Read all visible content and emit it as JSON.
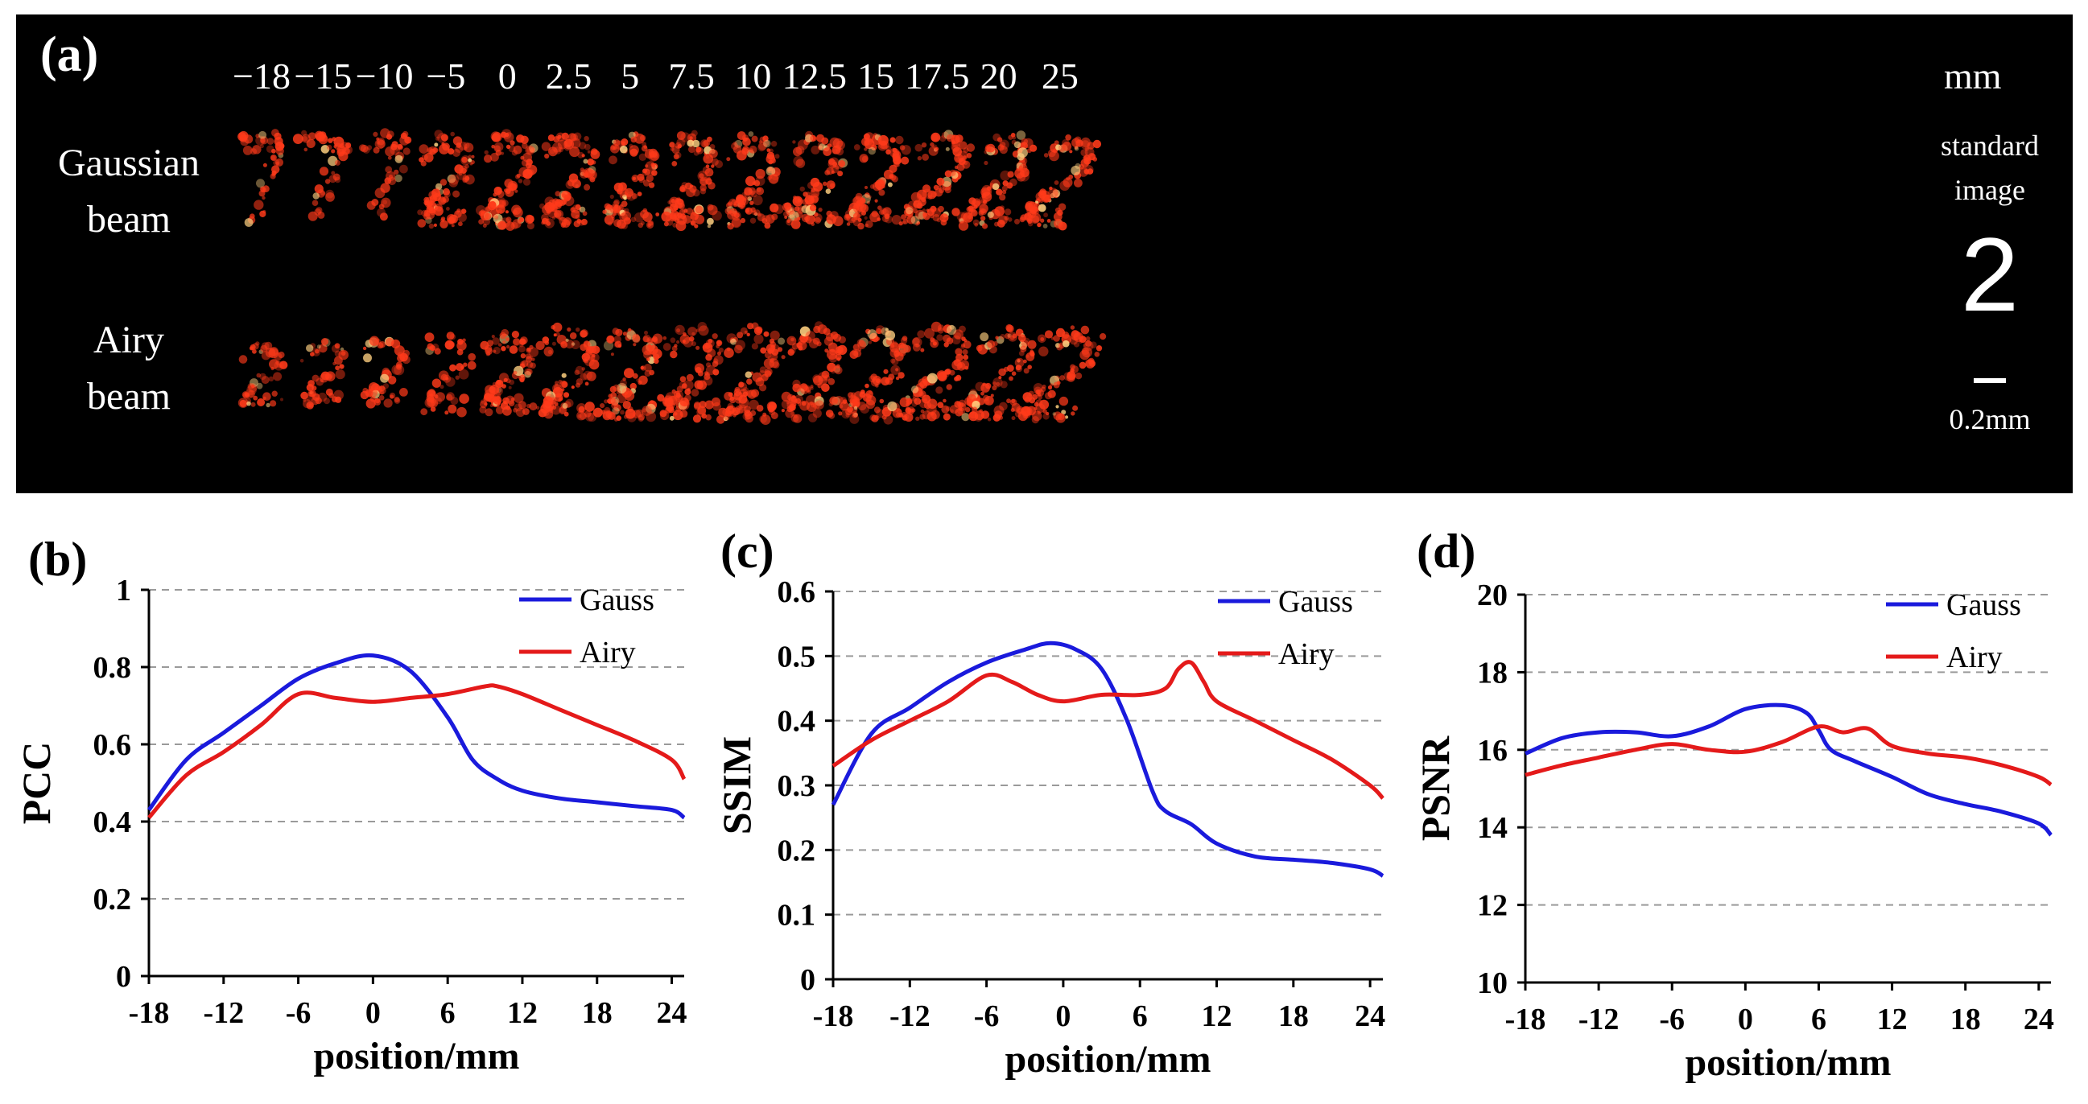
{
  "panel_a": {
    "label": "(a)",
    "positions": [
      "−18",
      "−15",
      "−10",
      "−5",
      "0",
      "2.5",
      "5",
      "7.5",
      "10",
      "12.5",
      "15",
      "17.5",
      "20",
      "25"
    ],
    "unit": "mm",
    "row1_label_line1": "Gaussian",
    "row1_label_line2": "beam",
    "row2_label_line1": "Airy",
    "row2_label_line2": "beam",
    "standard_line1": "standard",
    "standard_line2": "image",
    "standard_digit": "2",
    "scale_label": "0.2mm",
    "colors": {
      "background": "#000000",
      "speckle": "#ff3a1a",
      "speckle_bright": "#ffd080"
    }
  },
  "chart_data": [
    {
      "type": "line",
      "panel_label": "(b)",
      "title": "",
      "xlabel": "position/mm",
      "ylabel": "PCC",
      "xlim": [
        -18,
        25
      ],
      "ylim": [
        0,
        1
      ],
      "xticks": [
        -18,
        -12,
        -6,
        0,
        6,
        12,
        18,
        24
      ],
      "yticks": [
        0,
        0.2,
        0.4,
        0.6,
        0.8,
        1
      ],
      "ytick_labels": [
        "0",
        "0.2",
        "0.4",
        "0.6",
        "0.8",
        "1"
      ],
      "grid": "horizontal-dashed",
      "legend": "top-right",
      "series": [
        {
          "name": "Gauss",
          "color": "#1a1adc",
          "x": [
            -18,
            -15,
            -12,
            -9,
            -6,
            -3,
            0,
            3,
            6,
            8,
            10,
            12,
            15,
            18,
            21,
            24,
            25
          ],
          "y": [
            0.43,
            0.56,
            0.63,
            0.7,
            0.77,
            0.81,
            0.83,
            0.79,
            0.67,
            0.56,
            0.51,
            0.48,
            0.46,
            0.45,
            0.44,
            0.43,
            0.41
          ]
        },
        {
          "name": "Airy",
          "color": "#e41a1a",
          "x": [
            -18,
            -15,
            -12,
            -9,
            -6,
            -3,
            0,
            3,
            6,
            9,
            10,
            12,
            15,
            18,
            21,
            24,
            25
          ],
          "y": [
            0.41,
            0.52,
            0.58,
            0.65,
            0.73,
            0.72,
            0.71,
            0.72,
            0.73,
            0.75,
            0.75,
            0.73,
            0.69,
            0.65,
            0.61,
            0.56,
            0.51
          ]
        }
      ]
    },
    {
      "type": "line",
      "panel_label": "(c)",
      "title": "",
      "xlabel": "position/mm",
      "ylabel": "SSIM",
      "xlim": [
        -18,
        25
      ],
      "ylim": [
        0,
        0.6
      ],
      "xticks": [
        -18,
        -12,
        -6,
        0,
        6,
        12,
        18,
        24
      ],
      "yticks": [
        0,
        0.1,
        0.2,
        0.3,
        0.4,
        0.5,
        0.6
      ],
      "ytick_labels": [
        "0",
        "0.1",
        "0.2",
        "0.3",
        "0.4",
        "0.5",
        "0.6"
      ],
      "grid": "horizontal-dashed",
      "legend": "top-right",
      "series": [
        {
          "name": "Gauss",
          "color": "#1a1adc",
          "x": [
            -18,
            -15,
            -12,
            -9,
            -6,
            -3,
            -1,
            1,
            3,
            5,
            7,
            8,
            10,
            12,
            15,
            18,
            21,
            24,
            25
          ],
          "y": [
            0.27,
            0.38,
            0.42,
            0.46,
            0.49,
            0.51,
            0.52,
            0.51,
            0.48,
            0.4,
            0.29,
            0.26,
            0.24,
            0.21,
            0.19,
            0.185,
            0.18,
            0.17,
            0.16
          ]
        },
        {
          "name": "Airy",
          "color": "#e41a1a",
          "x": [
            -18,
            -15,
            -12,
            -9,
            -6,
            -4,
            -2,
            0,
            3,
            6,
            8,
            9,
            10,
            11,
            12,
            15,
            18,
            21,
            24,
            25
          ],
          "y": [
            0.33,
            0.37,
            0.4,
            0.43,
            0.47,
            0.46,
            0.44,
            0.43,
            0.44,
            0.44,
            0.45,
            0.48,
            0.49,
            0.46,
            0.43,
            0.4,
            0.37,
            0.34,
            0.3,
            0.28
          ]
        }
      ]
    },
    {
      "type": "line",
      "panel_label": "(d)",
      "title": "",
      "xlabel": "position/mm",
      "ylabel": "PSNR",
      "xlim": [
        -18,
        25
      ],
      "ylim": [
        10,
        20
      ],
      "xticks": [
        -18,
        -12,
        -6,
        0,
        6,
        12,
        18,
        24
      ],
      "yticks": [
        10,
        12,
        14,
        16,
        18,
        20
      ],
      "ytick_labels": [
        "10",
        "12",
        "14",
        "16",
        "18",
        "20"
      ],
      "grid": "horizontal-dashed",
      "legend": "top-right",
      "series": [
        {
          "name": "Gauss",
          "color": "#1a1adc",
          "x": [
            -18,
            -15,
            -12,
            -9,
            -6,
            -3,
            0,
            3,
            5,
            6,
            7,
            9,
            12,
            15,
            18,
            21,
            24,
            25
          ],
          "y": [
            15.9,
            16.3,
            16.45,
            16.45,
            16.35,
            16.6,
            17.05,
            17.15,
            16.95,
            16.5,
            16.0,
            15.7,
            15.3,
            14.85,
            14.6,
            14.4,
            14.1,
            13.8
          ]
        },
        {
          "name": "Airy",
          "color": "#e41a1a",
          "x": [
            -18,
            -15,
            -12,
            -9,
            -6,
            -3,
            0,
            3,
            6,
            8,
            10,
            12,
            15,
            18,
            21,
            24,
            25
          ],
          "y": [
            15.35,
            15.6,
            15.8,
            16.0,
            16.15,
            16.0,
            15.95,
            16.2,
            16.6,
            16.45,
            16.55,
            16.1,
            15.9,
            15.8,
            15.6,
            15.3,
            15.1
          ]
        }
      ]
    }
  ]
}
